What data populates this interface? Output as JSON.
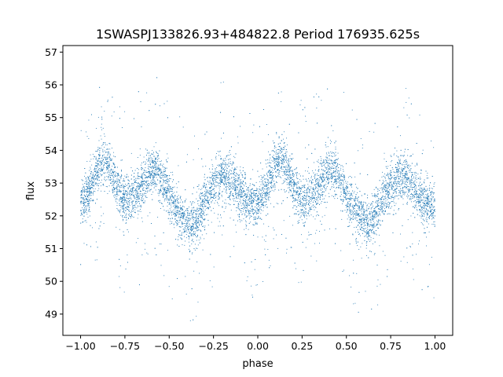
{
  "chart_data": {
    "type": "scatter",
    "title": "1SWASPJ133826.93+484822.8 Period 176935.625s",
    "xlabel": "phase",
    "ylabel": "flux",
    "xlim": [
      -1.1,
      1.1
    ],
    "ylim": [
      48.35,
      57.2
    ],
    "x_ticks": [
      -1.0,
      -0.75,
      -0.5,
      -0.25,
      0.0,
      0.25,
      0.5,
      0.75,
      1.0
    ],
    "x_tick_labels": [
      "−1.00",
      "−0.75",
      "−0.50",
      "−0.25",
      "0.00",
      "0.25",
      "0.50",
      "0.75",
      "1.00"
    ],
    "y_ticks": [
      49,
      50,
      51,
      52,
      53,
      54,
      55,
      56,
      57
    ],
    "y_tick_labels": [
      "49",
      "50",
      "51",
      "52",
      "53",
      "54",
      "55",
      "56",
      "57"
    ],
    "grid": false,
    "legend": "none",
    "marker_color": "#1f77b4",
    "light_curve": {
      "description_units": "phase vs mean flux of the folded light curve (one cycle, repeated over two cycles)",
      "phase": [
        0.0,
        0.05,
        0.1,
        0.125,
        0.15,
        0.2,
        0.25,
        0.3,
        0.35,
        0.4,
        0.425,
        0.45,
        0.5,
        0.55,
        0.6,
        0.625,
        0.65,
        0.7,
        0.75,
        0.8,
        0.85,
        0.9,
        0.95,
        1.0
      ],
      "flux": [
        52.3,
        52.8,
        53.5,
        53.75,
        53.6,
        52.9,
        52.5,
        52.6,
        53.0,
        53.4,
        53.45,
        53.2,
        52.6,
        52.1,
        51.8,
        51.7,
        51.9,
        52.4,
        52.9,
        53.25,
        53.1,
        52.7,
        52.4,
        52.3
      ],
      "scatter_sigma": 0.35,
      "point_count": 9000,
      "outlier_fraction": 0.06,
      "outlier_range": [
        48.8,
        56.7
      ]
    }
  }
}
